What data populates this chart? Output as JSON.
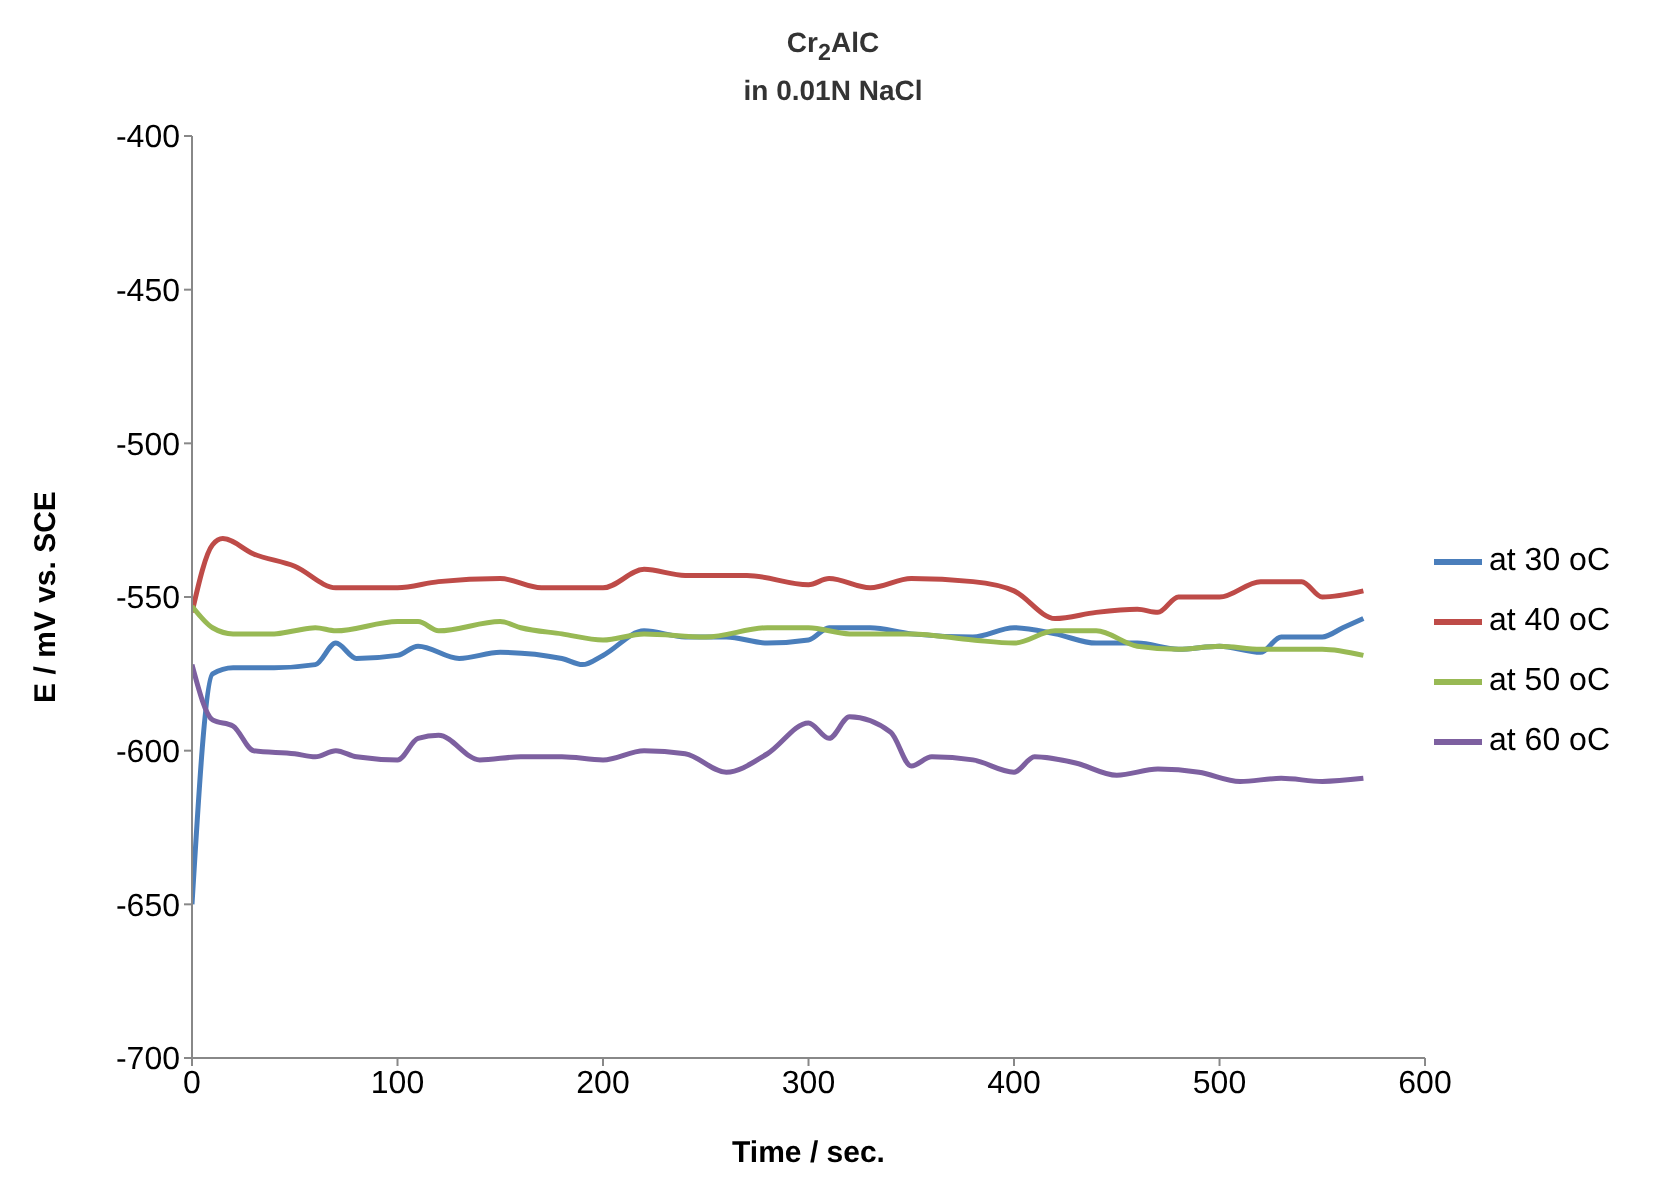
{
  "chart_data": {
    "type": "line",
    "title": "Cr$_{2}$AlC",
    "subtitle": "in 0.01N NaCl",
    "xlabel": "Time / sec.",
    "ylabel": "E / mV vs. SCE",
    "xlim": [
      0,
      600
    ],
    "xticks": [
      0,
      100,
      200,
      300,
      400,
      500,
      600
    ],
    "ylim": [
      -700,
      -400
    ],
    "yticks": [
      -700,
      -650,
      -600,
      -550,
      -500,
      -450,
      -400
    ],
    "grid": false,
    "legend": "right",
    "marker": "none",
    "line_style": "solid",
    "series": [
      {
        "name": "at 30 oC",
        "color": "#4a7ebb",
        "x": [
          0,
          10,
          20,
          40,
          60,
          70,
          80,
          100,
          110,
          130,
          150,
          180,
          190,
          200,
          220,
          240,
          260,
          280,
          300,
          310,
          330,
          350,
          380,
          400,
          420,
          440,
          460,
          480,
          500,
          520,
          530,
          550,
          560,
          570
        ],
        "values": [
          -650,
          -575,
          -573,
          -573,
          -572,
          -565,
          -570,
          -569,
          -566,
          -570,
          -568,
          -570,
          -572,
          -569,
          -561,
          -563,
          -563,
          -565,
          -564,
          -560,
          -560,
          -562,
          -563,
          -560,
          -562,
          -565,
          -565,
          -567,
          -566,
          -568,
          -563,
          -563,
          -560,
          -557
        ]
      },
      {
        "name": "at 40 oC",
        "color": "#be4b48",
        "x": [
          0,
          10,
          15,
          30,
          50,
          70,
          100,
          120,
          150,
          170,
          200,
          220,
          240,
          270,
          300,
          310,
          330,
          350,
          380,
          400,
          420,
          440,
          460,
          470,
          480,
          500,
          520,
          540,
          550,
          570
        ],
        "values": [
          -555,
          -533,
          -531,
          -536,
          -540,
          -547,
          -547,
          -545,
          -544,
          -547,
          -547,
          -541,
          -543,
          -543,
          -546,
          -544,
          -547,
          -544,
          -545,
          -548,
          -557,
          -555,
          -554,
          -555,
          -550,
          -550,
          -545,
          -545,
          -550,
          -548
        ]
      },
      {
        "name": "at 50 oC",
        "color": "#98b954",
        "x": [
          0,
          10,
          20,
          40,
          50,
          60,
          70,
          100,
          110,
          120,
          150,
          160,
          180,
          200,
          220,
          250,
          280,
          300,
          320,
          350,
          380,
          400,
          420,
          440,
          460,
          480,
          500,
          520,
          550,
          570
        ],
        "values": [
          -553,
          -560,
          -562,
          -562,
          -561,
          -560,
          -561,
          -558,
          -558,
          -561,
          -558,
          -560,
          -562,
          -564,
          -562,
          -563,
          -560,
          -560,
          -562,
          -562,
          -564,
          -565,
          -561,
          -561,
          -566,
          -567,
          -566,
          -567,
          -567,
          -569
        ]
      },
      {
        "name": "at 60 oC",
        "color": "#7d60a0",
        "x": [
          0,
          10,
          20,
          30,
          50,
          60,
          70,
          80,
          100,
          110,
          120,
          140,
          160,
          180,
          200,
          220,
          240,
          260,
          280,
          300,
          310,
          320,
          340,
          350,
          360,
          380,
          400,
          410,
          430,
          450,
          470,
          490,
          510,
          530,
          550,
          570
        ],
        "values": [
          -572,
          -590,
          -592,
          -600,
          -601,
          -602,
          -600,
          -602,
          -603,
          -596,
          -595,
          -603,
          -602,
          -602,
          -603,
          -600,
          -601,
          -607,
          -601,
          -591,
          -596,
          -589,
          -594,
          -605,
          -602,
          -603,
          -607,
          -602,
          -604,
          -608,
          -606,
          -607,
          -610,
          -609,
          -610,
          -609
        ]
      }
    ]
  }
}
